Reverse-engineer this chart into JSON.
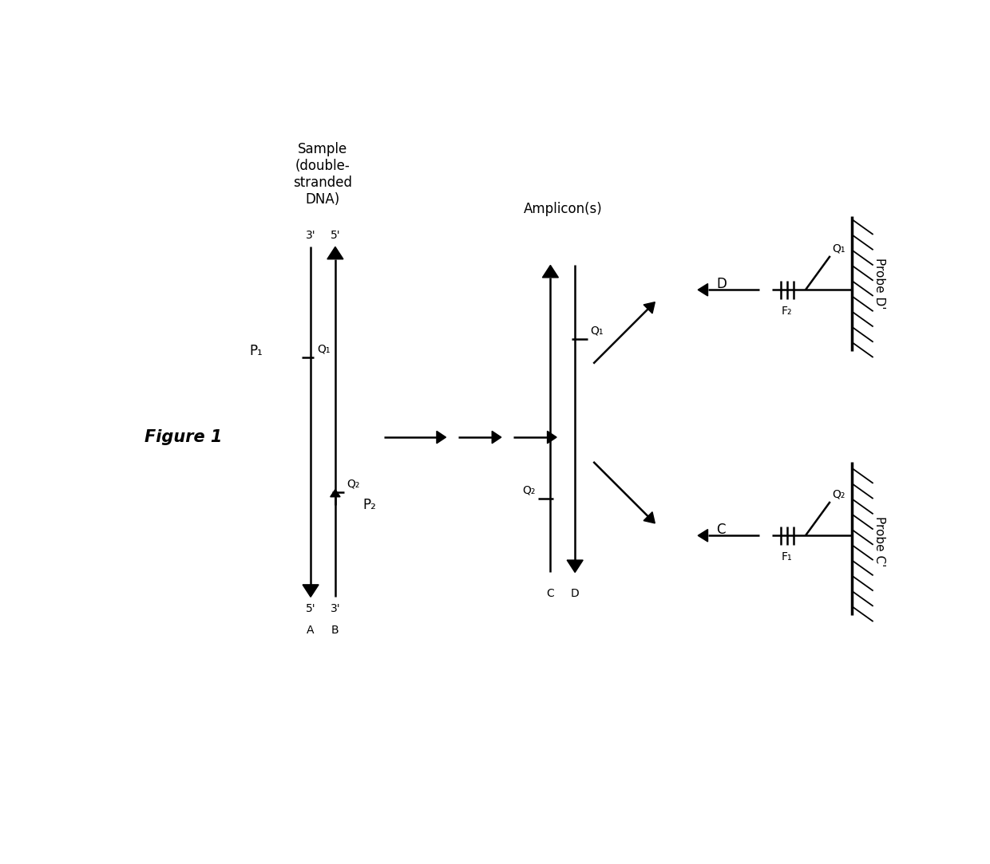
{
  "figure_label": "Figure 1",
  "title_sample": "Sample\n(double-\nstranded\nDNA)",
  "title_amplicon": "Amplicon(s)",
  "bg_color": "#ffffff",
  "line_color": "#000000",
  "font_size_label": 12,
  "font_size_small": 10,
  "font_size_title": 12,
  "font_size_fig": 15,
  "font_size_probe": 11
}
